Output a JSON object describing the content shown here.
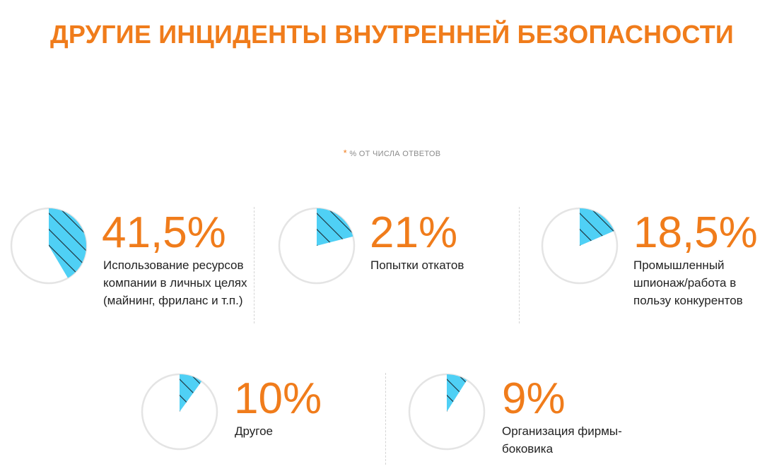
{
  "title": "ДРУГИЕ ИНЦИДЕНТЫ ВНУТРЕННЕЙ БЕЗОПАСНОСТИ",
  "note": {
    "star": "*",
    "text": "% ОТ ЧИСЛА ОТВЕТОВ"
  },
  "colors": {
    "accent": "#f07c1b",
    "slice": "#4fd0f5",
    "hatch": "#1a2a33",
    "ring": "#e4e4e4"
  },
  "chart_data": {
    "type": "pie",
    "unit": "%",
    "items": [
      {
        "value": 41.5,
        "display": "41,5%",
        "label": "Использование ресурсов компании в личных целях (майнинг, фриланс и т.п.)"
      },
      {
        "value": 21,
        "display": "21%",
        "label": "Попытки откатов"
      },
      {
        "value": 18.5,
        "display": "18,5%",
        "label": "Промышленный шпионаж/работа в пользу конкурентов"
      },
      {
        "value": 10,
        "display": "10%",
        "label": "Другое"
      },
      {
        "value": 9,
        "display": "9%",
        "label": "Организация фирмы-боковика"
      }
    ]
  }
}
